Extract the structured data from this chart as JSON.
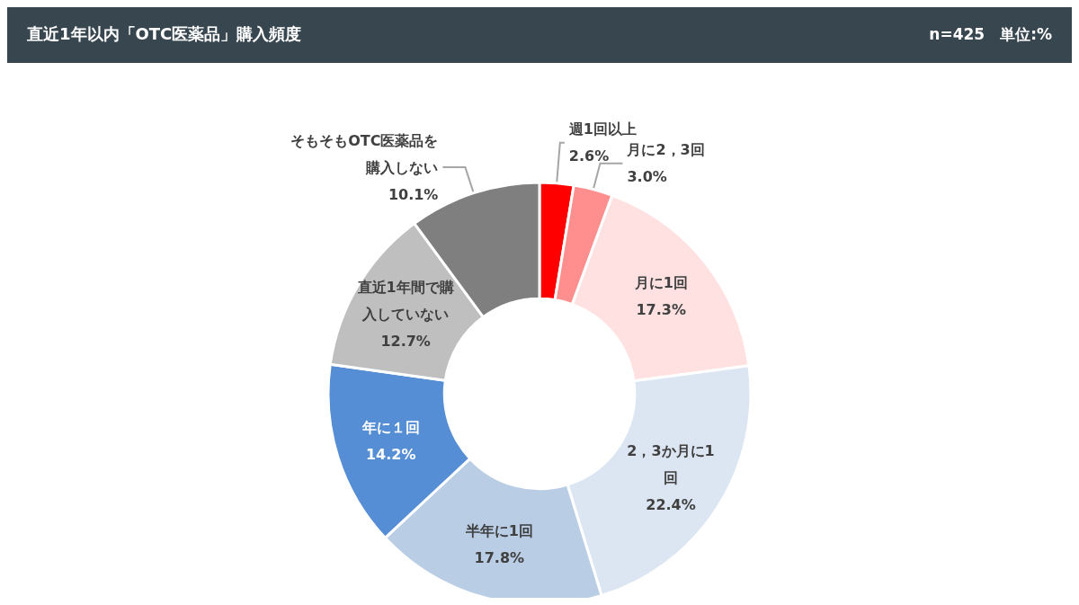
{
  "chart_data": {
    "type": "donut",
    "title": "直近1年以内「OTC医薬品」購入頻度",
    "subtitle": "n=425　単位:%",
    "categories": [
      "週1回以上",
      "月に2，3回",
      "月に1回",
      "2，3か月に1回",
      "半年に1回",
      "年に１回",
      "直近1年間で購入していない",
      "そもそもOTC医薬品を購入しない"
    ],
    "values": [
      2.6,
      3.0,
      17.3,
      22.4,
      17.8,
      14.2,
      12.7,
      10.1
    ],
    "value_labels": [
      "2.6%",
      "3.0%",
      "17.3%",
      "22.4%",
      "17.8%",
      "14.2%",
      "12.7%",
      "10.1%"
    ],
    "colors": [
      "#ff0000",
      "#ff8f8f",
      "#ffe1e1",
      "#dce6f2",
      "#b9cde5",
      "#558ed5",
      "#bfbfbf",
      "#7f7f7f"
    ],
    "legend": false
  }
}
